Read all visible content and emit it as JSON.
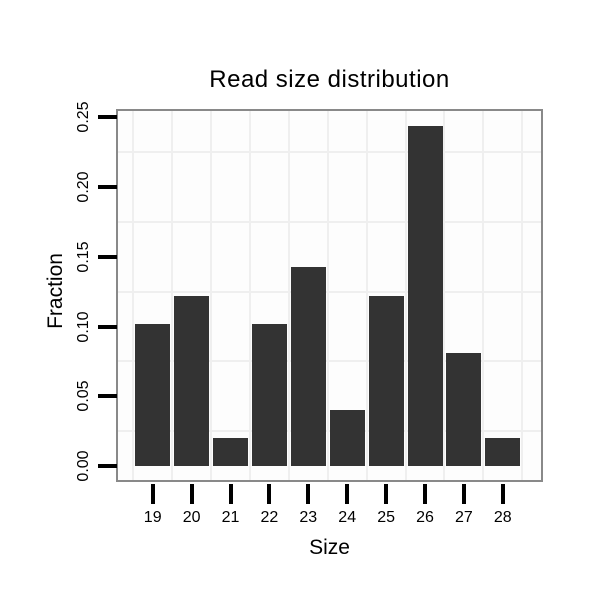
{
  "chart_data": {
    "type": "bar",
    "title": "Read size distribution",
    "xlabel": "Size",
    "ylabel": "Fraction",
    "categories": [
      "19",
      "20",
      "21",
      "22",
      "23",
      "24",
      "25",
      "26",
      "27",
      "28"
    ],
    "values": [
      0.102,
      0.122,
      0.02,
      0.102,
      0.143,
      0.04,
      0.122,
      0.244,
      0.081,
      0.02
    ],
    "y_ticks": [
      0.0,
      0.05,
      0.1,
      0.15,
      0.2,
      0.25
    ],
    "y_tick_labels": [
      "0.00",
      "0.05",
      "0.10",
      "0.15",
      "0.20",
      "0.25"
    ],
    "ylim": [
      -0.013,
      0.267
    ],
    "y_minor_gridlines": [
      0.025,
      0.075,
      0.125,
      0.175,
      0.225
    ],
    "grid": "minor gridlines only, offset between ticks; vertical gridlines at category boundaries",
    "legend": "none",
    "colors": {
      "bar": "#333333",
      "panel_border": "#898989",
      "panel_background": "#fdfdfd",
      "gridline": "#efefef",
      "tick": "#000000",
      "text": "#000000",
      "page_background": "#ffffff"
    }
  }
}
